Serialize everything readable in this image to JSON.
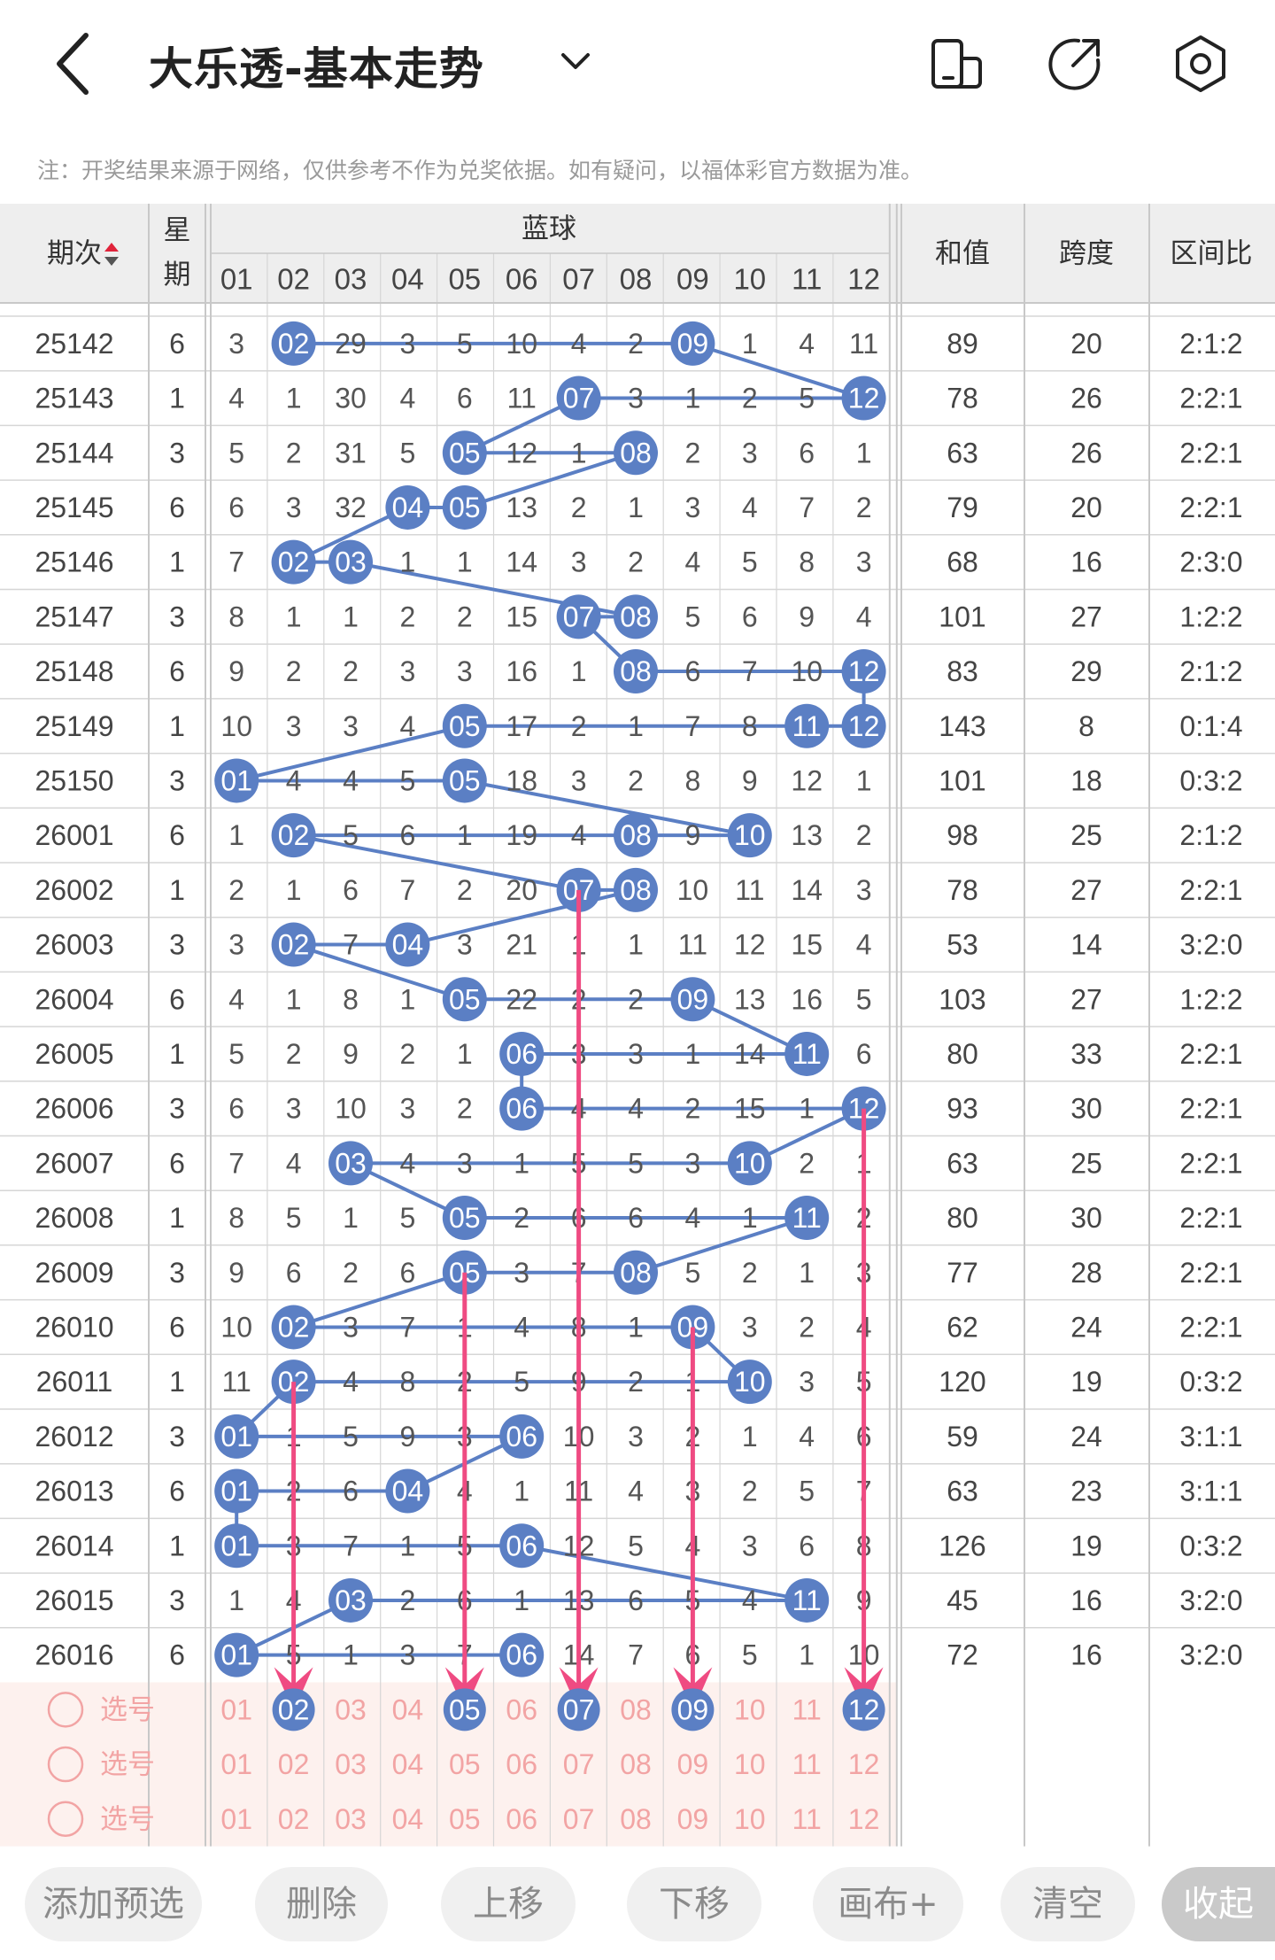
{
  "header": {
    "title": "大乐透-基本走势",
    "icons": [
      "back-arrow-icon",
      "chevron-down-icon",
      "phone-rotate-icon",
      "share-icon",
      "settings-icon"
    ]
  },
  "note": "注：开奖结果来源于网络，仅供参考不作为兑奖依据。如有疑问，以福体彩官方数据为准。",
  "table": {
    "col_period": "期次",
    "col_week": "星期",
    "group_title": "蓝球",
    "numbers": [
      "01",
      "02",
      "03",
      "04",
      "05",
      "06",
      "07",
      "08",
      "09",
      "10",
      "11",
      "12"
    ],
    "col_sum": "和值",
    "col_span": "跨度",
    "col_ratio": "区间比",
    "rows": [
      {
        "period": "25142",
        "week": "6",
        "cells": [
          "3",
          "02",
          "29",
          "3",
          "5",
          "10",
          "4",
          "2",
          "09",
          "1",
          "4",
          "11"
        ],
        "sum": "89",
        "span": "20",
        "ratio": "2:1:2"
      },
      {
        "period": "25143",
        "week": "1",
        "cells": [
          "4",
          "1",
          "30",
          "4",
          "6",
          "11",
          "07",
          "3",
          "1",
          "2",
          "5",
          "12"
        ],
        "sum": "78",
        "span": "26",
        "ratio": "2:2:1"
      },
      {
        "period": "25144",
        "week": "3",
        "cells": [
          "5",
          "2",
          "31",
          "5",
          "05",
          "12",
          "1",
          "08",
          "2",
          "3",
          "6",
          "1"
        ],
        "sum": "63",
        "span": "26",
        "ratio": "2:2:1"
      },
      {
        "period": "25145",
        "week": "6",
        "cells": [
          "6",
          "3",
          "32",
          "04",
          "05",
          "13",
          "2",
          "1",
          "3",
          "4",
          "7",
          "2"
        ],
        "sum": "79",
        "span": "20",
        "ratio": "2:2:1"
      },
      {
        "period": "25146",
        "week": "1",
        "cells": [
          "7",
          "02",
          "03",
          "1",
          "1",
          "14",
          "3",
          "2",
          "4",
          "5",
          "8",
          "3"
        ],
        "sum": "68",
        "span": "16",
        "ratio": "2:3:0"
      },
      {
        "period": "25147",
        "week": "3",
        "cells": [
          "8",
          "1",
          "1",
          "2",
          "2",
          "15",
          "07",
          "08",
          "5",
          "6",
          "9",
          "4"
        ],
        "sum": "101",
        "span": "27",
        "ratio": "1:2:2"
      },
      {
        "period": "25148",
        "week": "6",
        "cells": [
          "9",
          "2",
          "2",
          "3",
          "3",
          "16",
          "1",
          "08",
          "6",
          "7",
          "10",
          "12"
        ],
        "sum": "83",
        "span": "29",
        "ratio": "2:1:2"
      },
      {
        "period": "25149",
        "week": "1",
        "cells": [
          "10",
          "3",
          "3",
          "4",
          "05",
          "17",
          "2",
          "1",
          "7",
          "8",
          "11",
          "12"
        ],
        "sum": "143",
        "span": "8",
        "ratio": "0:1:4"
      },
      {
        "period": "25150",
        "week": "3",
        "cells": [
          "01",
          "4",
          "4",
          "5",
          "05",
          "18",
          "3",
          "2",
          "8",
          "9",
          "12",
          "1"
        ],
        "sum": "101",
        "span": "18",
        "ratio": "0:3:2"
      },
      {
        "period": "26001",
        "week": "6",
        "cells": [
          "1",
          "02",
          "5",
          "6",
          "1",
          "19",
          "4",
          "08",
          "9",
          "10",
          "13",
          "2"
        ],
        "sum": "98",
        "span": "25",
        "ratio": "2:1:2"
      },
      {
        "period": "26002",
        "week": "1",
        "cells": [
          "2",
          "1",
          "6",
          "7",
          "2",
          "20",
          "07",
          "08",
          "10",
          "11",
          "14",
          "3"
        ],
        "sum": "78",
        "span": "27",
        "ratio": "2:2:1"
      },
      {
        "period": "26003",
        "week": "3",
        "cells": [
          "3",
          "02",
          "7",
          "04",
          "3",
          "21",
          "1",
          "1",
          "11",
          "12",
          "15",
          "4"
        ],
        "sum": "53",
        "span": "14",
        "ratio": "3:2:0"
      },
      {
        "period": "26004",
        "week": "6",
        "cells": [
          "4",
          "1",
          "8",
          "1",
          "05",
          "22",
          "2",
          "2",
          "09",
          "13",
          "16",
          "5"
        ],
        "sum": "103",
        "span": "27",
        "ratio": "1:2:2"
      },
      {
        "period": "26005",
        "week": "1",
        "cells": [
          "5",
          "2",
          "9",
          "2",
          "1",
          "06",
          "3",
          "3",
          "1",
          "14",
          "11",
          "6"
        ],
        "sum": "80",
        "span": "33",
        "ratio": "2:2:1"
      },
      {
        "period": "26006",
        "week": "3",
        "cells": [
          "6",
          "3",
          "10",
          "3",
          "2",
          "06",
          "4",
          "4",
          "2",
          "15",
          "1",
          "12"
        ],
        "sum": "93",
        "span": "30",
        "ratio": "2:2:1"
      },
      {
        "period": "26007",
        "week": "6",
        "cells": [
          "7",
          "4",
          "03",
          "4",
          "3",
          "1",
          "5",
          "5",
          "3",
          "10",
          "2",
          "1"
        ],
        "sum": "63",
        "span": "25",
        "ratio": "2:2:1"
      },
      {
        "period": "26008",
        "week": "1",
        "cells": [
          "8",
          "5",
          "1",
          "5",
          "05",
          "2",
          "6",
          "6",
          "4",
          "1",
          "11",
          "2"
        ],
        "sum": "80",
        "span": "30",
        "ratio": "2:2:1"
      },
      {
        "period": "26009",
        "week": "3",
        "cells": [
          "9",
          "6",
          "2",
          "6",
          "05",
          "3",
          "7",
          "08",
          "5",
          "2",
          "1",
          "3"
        ],
        "sum": "77",
        "span": "28",
        "ratio": "2:2:1"
      },
      {
        "period": "26010",
        "week": "6",
        "cells": [
          "10",
          "02",
          "3",
          "7",
          "1",
          "4",
          "8",
          "1",
          "09",
          "3",
          "2",
          "4"
        ],
        "sum": "62",
        "span": "24",
        "ratio": "2:2:1"
      },
      {
        "period": "26011",
        "week": "1",
        "cells": [
          "11",
          "02",
          "4",
          "8",
          "2",
          "5",
          "9",
          "2",
          "1",
          "10",
          "3",
          "5"
        ],
        "sum": "120",
        "span": "19",
        "ratio": "0:3:2"
      },
      {
        "period": "26012",
        "week": "3",
        "cells": [
          "01",
          "1",
          "5",
          "9",
          "3",
          "06",
          "10",
          "3",
          "2",
          "1",
          "4",
          "6"
        ],
        "sum": "59",
        "span": "24",
        "ratio": "3:1:1"
      },
      {
        "period": "26013",
        "week": "6",
        "cells": [
          "01",
          "2",
          "6",
          "04",
          "4",
          "1",
          "11",
          "4",
          "3",
          "2",
          "5",
          "7"
        ],
        "sum": "63",
        "span": "23",
        "ratio": "3:1:1"
      },
      {
        "period": "26014",
        "week": "1",
        "cells": [
          "01",
          "3",
          "7",
          "1",
          "5",
          "06",
          "12",
          "5",
          "4",
          "3",
          "6",
          "8"
        ],
        "sum": "126",
        "span": "19",
        "ratio": "0:3:2"
      },
      {
        "period": "26015",
        "week": "3",
        "cells": [
          "1",
          "4",
          "03",
          "2",
          "6",
          "1",
          "13",
          "6",
          "5",
          "4",
          "11",
          "9"
        ],
        "sum": "45",
        "span": "16",
        "ratio": "3:2:0"
      },
      {
        "period": "26016",
        "week": "6",
        "cells": [
          "01",
          "5",
          "1",
          "3",
          "7",
          "06",
          "14",
          "7",
          "6",
          "5",
          "1",
          "10"
        ],
        "sum": "72",
        "span": "16",
        "ratio": "3:2:0"
      }
    ],
    "select_label": "选号",
    "select_rows": [
      {
        "selected": [
          "02",
          "05",
          "07",
          "09",
          "12"
        ]
      },
      {
        "selected": []
      },
      {
        "selected": []
      }
    ]
  },
  "buttons": [
    "添加预选",
    "删除",
    "上移",
    "下移",
    "画布+",
    "清空",
    "收起"
  ],
  "colors": {
    "ball": "#5b7fc4",
    "line": "#5b7fc4",
    "arrow": "#ef4b82",
    "select_bg": "#fdf1ee",
    "select_text": "#f2a4a4",
    "grid": "#d6d6d6",
    "header_bg": "#eeeeee"
  }
}
